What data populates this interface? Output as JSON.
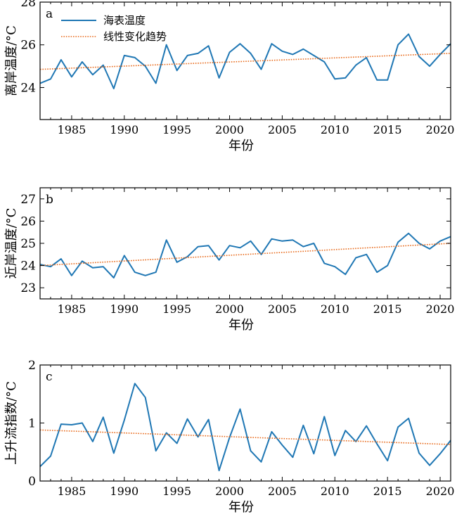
{
  "chart_data": [
    {
      "type": "line",
      "panel_label": "a",
      "xlabel": "年份",
      "ylabel": "离岸温度/°C",
      "xlim": [
        1982,
        2021
      ],
      "ylim": [
        22.5,
        28
      ],
      "xticks": [
        1985,
        1990,
        1995,
        2000,
        2005,
        2010,
        2015,
        2020
      ],
      "yticks": [
        24,
        26,
        28
      ],
      "legend_position": "top-left",
      "x": [
        1982,
        1983,
        1984,
        1985,
        1986,
        1987,
        1988,
        1989,
        1990,
        1991,
        1992,
        1993,
        1994,
        1995,
        1996,
        1997,
        1998,
        1999,
        2000,
        2001,
        2002,
        2003,
        2004,
        2005,
        2006,
        2007,
        2008,
        2009,
        2010,
        2011,
        2012,
        2013,
        2014,
        2015,
        2016,
        2017,
        2018,
        2019,
        2020,
        2021
      ],
      "series": [
        {
          "name": "海表温度",
          "color": "#1f77b4",
          "style": "solid",
          "values": [
            24.2,
            24.4,
            25.3,
            24.5,
            25.2,
            24.6,
            25.05,
            23.95,
            25.5,
            25.4,
            25.0,
            24.2,
            26.0,
            24.8,
            25.5,
            25.6,
            25.95,
            24.45,
            25.65,
            26.05,
            25.6,
            24.85,
            26.05,
            25.7,
            25.55,
            25.8,
            25.5,
            25.2,
            24.4,
            24.45,
            25.05,
            25.4,
            24.35,
            24.35,
            26.0,
            26.5,
            25.45,
            25.0,
            25.55,
            26.05
          ]
        },
        {
          "name": "线性变化趋势",
          "color": "#e86a1b",
          "style": "dotted",
          "trend": [
            24.85,
            25.6
          ]
        }
      ]
    },
    {
      "type": "line",
      "panel_label": "b",
      "xlabel": "年份",
      "ylabel": "近岸温度/°C",
      "xlim": [
        1982,
        2021
      ],
      "ylim": [
        22.5,
        27.5
      ],
      "xticks": [
        1985,
        1990,
        1995,
        2000,
        2005,
        2010,
        2015,
        2020
      ],
      "yticks": [
        23,
        24,
        25,
        26,
        27
      ],
      "x": [
        1982,
        1983,
        1984,
        1985,
        1986,
        1987,
        1988,
        1989,
        1990,
        1991,
        1992,
        1993,
        1994,
        1995,
        1996,
        1997,
        1998,
        1999,
        2000,
        2001,
        2002,
        2003,
        2004,
        2005,
        2006,
        2007,
        2008,
        2009,
        2010,
        2011,
        2012,
        2013,
        2014,
        2015,
        2016,
        2017,
        2018,
        2019,
        2020,
        2021
      ],
      "series": [
        {
          "name": "",
          "color": "#1f77b4",
          "style": "solid",
          "values": [
            24.05,
            23.95,
            24.3,
            23.55,
            24.2,
            23.9,
            23.95,
            23.45,
            24.45,
            23.7,
            23.55,
            23.7,
            25.15,
            24.15,
            24.4,
            24.85,
            24.9,
            24.25,
            24.9,
            24.8,
            25.1,
            24.5,
            25.2,
            25.1,
            25.15,
            24.85,
            25.0,
            24.1,
            23.95,
            23.6,
            24.35,
            24.5,
            23.7,
            24.0,
            25.05,
            25.45,
            25.0,
            24.75,
            25.1,
            25.3
          ]
        },
        {
          "name": "",
          "color": "#e86a1b",
          "style": "dotted",
          "trend": [
            24.0,
            25.0
          ]
        }
      ]
    },
    {
      "type": "line",
      "panel_label": "c",
      "xlabel": "年份",
      "ylabel": "上升流指数/°C",
      "xlim": [
        1982,
        2021
      ],
      "ylim": [
        0,
        2
      ],
      "xticks": [
        1985,
        1990,
        1995,
        2000,
        2005,
        2010,
        2015,
        2020
      ],
      "yticks": [
        0,
        1,
        2
      ],
      "x": [
        1982,
        1983,
        1984,
        1985,
        1986,
        1987,
        1988,
        1989,
        1990,
        1991,
        1992,
        1993,
        1994,
        1995,
        1996,
        1997,
        1998,
        1999,
        2000,
        2001,
        2002,
        2003,
        2004,
        2005,
        2006,
        2007,
        2008,
        2009,
        2010,
        2011,
        2012,
        2013,
        2014,
        2015,
        2016,
        2017,
        2018,
        2019,
        2020,
        2021
      ],
      "series": [
        {
          "name": "",
          "color": "#1f77b4",
          "style": "solid",
          "values": [
            0.25,
            0.43,
            0.98,
            0.97,
            1.0,
            0.68,
            1.1,
            0.48,
            1.05,
            1.68,
            1.44,
            0.52,
            0.83,
            0.65,
            1.07,
            0.76,
            1.06,
            0.18,
            0.75,
            1.24,
            0.52,
            0.33,
            0.85,
            0.62,
            0.41,
            0.96,
            0.47,
            1.11,
            0.44,
            0.87,
            0.68,
            0.95,
            0.64,
            0.35,
            0.93,
            1.08,
            0.48,
            0.27,
            0.47,
            0.7
          ]
        },
        {
          "name": "",
          "color": "#e86a1b",
          "style": "dotted",
          "trend": [
            0.88,
            0.63
          ]
        }
      ]
    }
  ]
}
